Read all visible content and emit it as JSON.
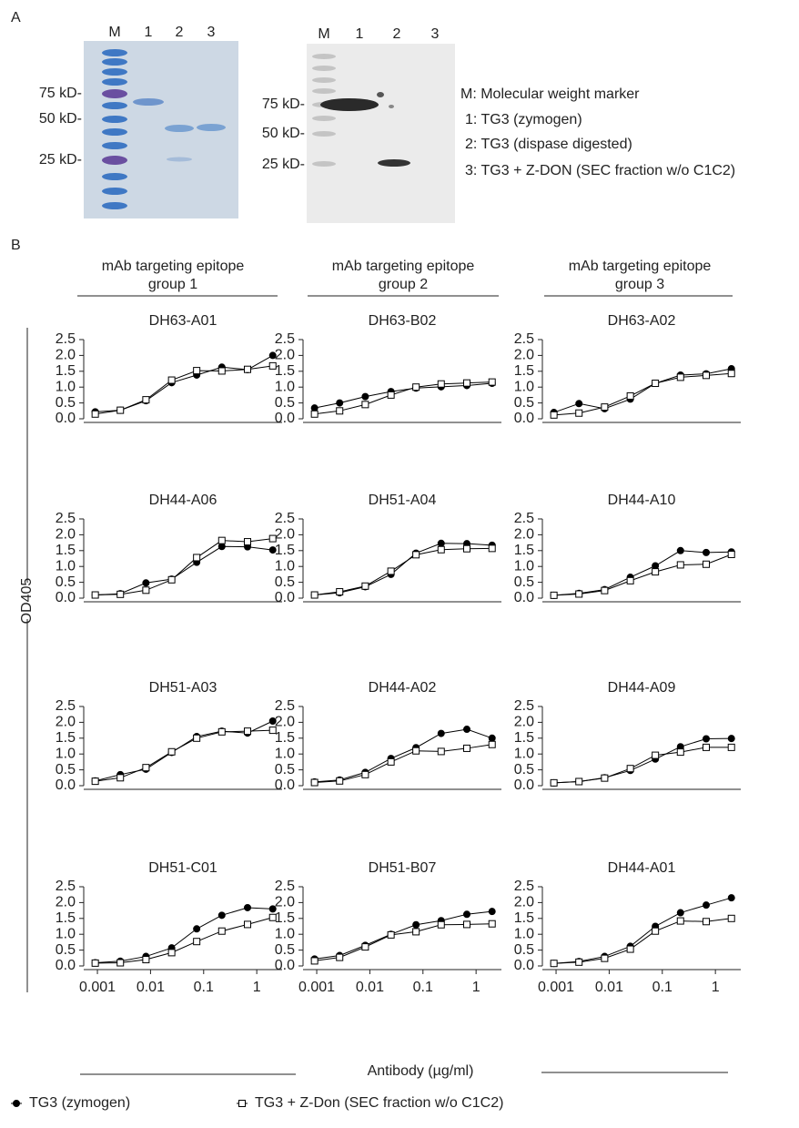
{
  "panel_a": {
    "label": "A",
    "gels": [
      {
        "lanes": [
          "M",
          "1",
          "2",
          "3"
        ],
        "markers": [
          "75 kD-",
          "50 kD-",
          "25 kD-"
        ]
      },
      {
        "lanes": [
          "M",
          "1",
          "2",
          "3"
        ],
        "markers": [
          "75 kD-",
          "50 kD-",
          "25 kD-"
        ]
      }
    ],
    "key": [
      "M: Molecular weight marker",
      "1: TG3 (zymogen)",
      "2: TG3 (dispase digested)",
      "3: TG3 + Z-DON (SEC fraction w/o C1C2)"
    ]
  },
  "panel_b": {
    "label": "B",
    "groups": [
      "mAb targeting epitope group 1",
      "mAb targeting epitope group 2",
      "mAb targeting epitope group 3"
    ],
    "y_label": "OD405",
    "x_label": "Antibody (µg/ml)",
    "series_styles": [
      {
        "name": "TG3 (zymogen)",
        "color": "#000000",
        "marker": "circle",
        "filled": true
      },
      {
        "name": "TG3 + Z-Don (SEC fraction w/o C1C2)",
        "color": "#000000",
        "marker": "square",
        "filled": false
      }
    ]
  },
  "chart_data": [
    {
      "type": "line",
      "title": "DH63-A01",
      "log_x": true,
      "x": [
        0.00091,
        0.0027,
        0.0082,
        0.025,
        0.074,
        0.22,
        0.67,
        2
      ],
      "xlim": [
        0.0007,
        3
      ],
      "ylim": [
        0,
        2.5
      ],
      "yticks": [
        {
          "value": 0,
          "label": "0.0"
        },
        0.5,
        {
          "value": 1,
          "label": "1.0"
        },
        1.5,
        {
          "value": 2,
          "label": "2.0"
        },
        2.5
      ],
      "series": [
        {
          "values": [
            0.22,
            0.27,
            0.57,
            1.14,
            1.38,
            1.63,
            1.55,
            2.0
          ]
        },
        {
          "values": [
            0.15,
            0.27,
            0.6,
            1.22,
            1.52,
            1.51,
            1.56,
            1.67
          ]
        }
      ]
    },
    {
      "type": "line",
      "title": "DH63-B02",
      "log_x": true,
      "x": [
        0.00091,
        0.0027,
        0.0082,
        0.025,
        0.074,
        0.22,
        0.67,
        2
      ],
      "xlim": [
        0.0007,
        3
      ],
      "ylim": [
        0,
        2.5
      ],
      "yticks": [
        {
          "value": 0,
          "label": "0.0"
        },
        0.5,
        {
          "value": 1,
          "label": "1.0"
        },
        1.5,
        {
          "value": 2,
          "label": "2.0"
        },
        2.5
      ],
      "series": [
        {
          "values": [
            0.34,
            0.5,
            0.7,
            0.86,
            0.97,
            1.01,
            1.05,
            1.12
          ]
        },
        {
          "values": [
            0.15,
            0.25,
            0.45,
            0.75,
            1.0,
            1.1,
            1.13,
            1.16
          ]
        }
      ]
    },
    {
      "type": "line",
      "title": "DH63-A02",
      "log_x": true,
      "x": [
        0.00091,
        0.0027,
        0.0082,
        0.025,
        0.074,
        0.22,
        0.67,
        2
      ],
      "xlim": [
        0.0007,
        3
      ],
      "ylim": [
        0,
        2.5
      ],
      "yticks": [
        {
          "value": 0,
          "label": "0.0"
        },
        0.5,
        {
          "value": 1,
          "label": "1.0"
        },
        1.5,
        {
          "value": 2,
          "label": "2.0"
        },
        2.5
      ],
      "series": [
        {
          "values": [
            0.2,
            0.48,
            0.32,
            0.62,
            1.12,
            1.38,
            1.42,
            1.58
          ]
        },
        {
          "values": [
            0.12,
            0.18,
            0.37,
            0.72,
            1.12,
            1.31,
            1.37,
            1.43
          ]
        }
      ]
    },
    {
      "type": "line",
      "title": "DH44-A06",
      "log_x": true,
      "x": [
        0.00091,
        0.0027,
        0.0082,
        0.025,
        0.074,
        0.22,
        0.67,
        2
      ],
      "xlim": [
        0.0007,
        3
      ],
      "ylim": [
        0,
        2.5
      ],
      "yticks": [
        {
          "value": 0,
          "label": "0.0"
        },
        0.5,
        {
          "value": 1,
          "label": "1.0"
        },
        1.5,
        {
          "value": 2,
          "label": "2.0"
        },
        2.5
      ],
      "series": [
        {
          "values": [
            0.1,
            0.14,
            0.48,
            0.6,
            1.13,
            1.63,
            1.62,
            1.52
          ]
        },
        {
          "values": [
            0.1,
            0.12,
            0.25,
            0.58,
            1.28,
            1.82,
            1.78,
            1.88
          ]
        }
      ]
    },
    {
      "type": "line",
      "title": "DH51-A04",
      "log_x": true,
      "x": [
        0.00091,
        0.0027,
        0.0082,
        0.025,
        0.074,
        0.22,
        0.67,
        2
      ],
      "xlim": [
        0.0007,
        3
      ],
      "ylim": [
        0,
        2.5
      ],
      "yticks": [
        {
          "value": 0,
          "label": "0.0"
        },
        0.5,
        {
          "value": 1,
          "label": "1.0"
        },
        1.5,
        {
          "value": 2,
          "label": "2.0"
        },
        2.5
      ],
      "series": [
        {
          "values": [
            0.1,
            0.17,
            0.36,
            0.75,
            1.42,
            1.73,
            1.72,
            1.67
          ]
        },
        {
          "values": [
            0.1,
            0.2,
            0.38,
            0.85,
            1.37,
            1.53,
            1.56,
            1.57
          ]
        }
      ]
    },
    {
      "type": "line",
      "title": "DH44-A10",
      "log_x": true,
      "x": [
        0.00091,
        0.0027,
        0.0082,
        0.025,
        0.074,
        0.22,
        0.67,
        2
      ],
      "xlim": [
        0.0007,
        3
      ],
      "ylim": [
        0,
        2.5
      ],
      "yticks": [
        {
          "value": 0,
          "label": "0.0"
        },
        0.5,
        {
          "value": 1,
          "label": "1.0"
        },
        1.5,
        {
          "value": 2,
          "label": "2.0"
        },
        2.5
      ],
      "series": [
        {
          "values": [
            0.09,
            0.15,
            0.27,
            0.66,
            1.02,
            1.5,
            1.44,
            1.46
          ]
        },
        {
          "values": [
            0.09,
            0.13,
            0.24,
            0.55,
            0.83,
            1.05,
            1.07,
            1.38
          ]
        }
      ]
    },
    {
      "type": "line",
      "title": "DH51-A03",
      "log_x": true,
      "x": [
        0.00091,
        0.0027,
        0.0082,
        0.025,
        0.074,
        0.22,
        0.67,
        2
      ],
      "xlim": [
        0.0007,
        3
      ],
      "ylim": [
        0,
        2.5
      ],
      "yticks": [
        {
          "value": 0,
          "label": "0.0"
        },
        0.5,
        {
          "value": 1,
          "label": "1.0"
        },
        1.5,
        {
          "value": 2,
          "label": "2.0"
        },
        2.5
      ],
      "series": [
        {
          "values": [
            0.15,
            0.35,
            0.52,
            1.05,
            1.55,
            1.72,
            1.66,
            2.04
          ]
        },
        {
          "values": [
            0.14,
            0.25,
            0.57,
            1.07,
            1.5,
            1.7,
            1.72,
            1.75
          ]
        }
      ]
    },
    {
      "type": "line",
      "title": "DH44-A02",
      "log_x": true,
      "x": [
        0.00091,
        0.0027,
        0.0082,
        0.025,
        0.074,
        0.22,
        0.67,
        2
      ],
      "xlim": [
        0.0007,
        3
      ],
      "ylim": [
        0,
        2.5
      ],
      "yticks": [
        {
          "value": 0,
          "label": "0.0"
        },
        0.5,
        {
          "value": 1,
          "label": "1.0"
        },
        1.5,
        {
          "value": 2,
          "label": "2.0"
        },
        2.5
      ],
      "series": [
        {
          "values": [
            0.12,
            0.18,
            0.42,
            0.86,
            1.2,
            1.65,
            1.78,
            1.5
          ]
        },
        {
          "values": [
            0.1,
            0.15,
            0.35,
            0.75,
            1.1,
            1.08,
            1.18,
            1.3
          ]
        }
      ]
    },
    {
      "type": "line",
      "title": "DH44-A09",
      "log_x": true,
      "x": [
        0.00091,
        0.0027,
        0.0082,
        0.025,
        0.074,
        0.22,
        0.67,
        2
      ],
      "xlim": [
        0.0007,
        3
      ],
      "ylim": [
        0,
        2.5
      ],
      "yticks": [
        {
          "value": 0,
          "label": "0.0"
        },
        0.5,
        {
          "value": 1,
          "label": "1.0"
        },
        1.5,
        {
          "value": 2,
          "label": "2.0"
        },
        2.5
      ],
      "series": [
        {
          "values": [
            0.09,
            0.13,
            0.25,
            0.48,
            0.84,
            1.23,
            1.48,
            1.49
          ]
        },
        {
          "values": [
            0.09,
            0.13,
            0.24,
            0.54,
            0.96,
            1.06,
            1.21,
            1.21
          ]
        }
      ]
    },
    {
      "type": "line",
      "title": "DH51-C01",
      "log_x": true,
      "x": [
        0.00091,
        0.0027,
        0.0082,
        0.025,
        0.074,
        0.22,
        0.67,
        2
      ],
      "xlim": [
        0.0007,
        3
      ],
      "ylim": [
        0,
        2.5
      ],
      "yticks": [
        {
          "value": 0,
          "label": "0.0"
        },
        0.5,
        {
          "value": 1,
          "label": "1.0"
        },
        1.5,
        {
          "value": 2,
          "label": "2.0"
        },
        2.5
      ],
      "xticks": [
        0.001,
        0.01,
        0.1,
        1
      ],
      "series": [
        {
          "values": [
            0.1,
            0.15,
            0.3,
            0.57,
            1.17,
            1.6,
            1.84,
            1.8
          ]
        },
        {
          "values": [
            0.09,
            0.1,
            0.2,
            0.42,
            0.77,
            1.1,
            1.31,
            1.53
          ]
        }
      ]
    },
    {
      "type": "line",
      "title": "DH51-B07",
      "log_x": true,
      "x": [
        0.00091,
        0.0027,
        0.0082,
        0.025,
        0.074,
        0.22,
        0.67,
        2
      ],
      "xlim": [
        0.0007,
        3
      ],
      "ylim": [
        0,
        2.5
      ],
      "yticks": [
        {
          "value": 0,
          "label": "0.0"
        },
        0.5,
        {
          "value": 1,
          "label": "1.0"
        },
        1.5,
        {
          "value": 2,
          "label": "2.0"
        },
        2.5
      ],
      "xticks": [
        0.001,
        0.01,
        0.1,
        1
      ],
      "series": [
        {
          "values": [
            0.22,
            0.33,
            0.65,
            1.0,
            1.3,
            1.43,
            1.63,
            1.72
          ]
        },
        {
          "values": [
            0.16,
            0.27,
            0.6,
            0.98,
            1.08,
            1.3,
            1.31,
            1.33
          ]
        }
      ]
    },
    {
      "type": "line",
      "title": "DH44-A01",
      "log_x": true,
      "x": [
        0.00091,
        0.0027,
        0.0082,
        0.025,
        0.074,
        0.22,
        0.67,
        2
      ],
      "xlim": [
        0.0007,
        3
      ],
      "ylim": [
        0,
        2.5
      ],
      "yticks": [
        {
          "value": 0,
          "label": "0.0"
        },
        0.5,
        {
          "value": 1,
          "label": "1.0"
        },
        1.5,
        {
          "value": 2,
          "label": "2.0"
        },
        2.5
      ],
      "xticks": [
        0.001,
        0.01,
        0.1,
        1
      ],
      "series": [
        {
          "values": [
            0.08,
            0.14,
            0.3,
            0.62,
            1.25,
            1.68,
            1.92,
            2.15
          ]
        },
        {
          "values": [
            0.08,
            0.12,
            0.24,
            0.53,
            1.1,
            1.42,
            1.4,
            1.5
          ]
        }
      ]
    }
  ]
}
